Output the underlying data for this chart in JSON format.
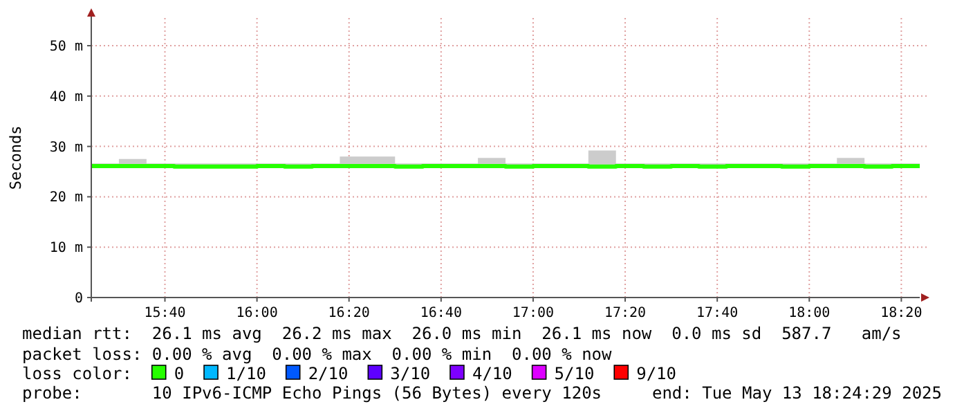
{
  "chart_data": {
    "type": "line",
    "ylabel": "Seconds",
    "legend_title": "loss color:",
    "legend": "bottom",
    "grid": true,
    "line_style": "solid",
    "marker": "none",
    "xlim": [
      15.4,
      18.4
    ],
    "xticks": [
      {
        "value": 15.6667,
        "label": "15:40"
      },
      {
        "value": 16,
        "label": "16:00"
      },
      {
        "value": 16.3333,
        "label": "16:20"
      },
      {
        "value": 16.6667,
        "label": "16:40"
      },
      {
        "value": 17,
        "label": "17:00"
      },
      {
        "value": 17.3333,
        "label": "17:20"
      },
      {
        "value": 17.6667,
        "label": "17:40"
      },
      {
        "value": 18,
        "label": "18:00"
      },
      {
        "value": 18.3333,
        "label": "18:20"
      }
    ],
    "ylim": [
      0,
      55.5
    ],
    "yticks": [
      {
        "value": 0,
        "label": "0"
      },
      {
        "value": 10,
        "label": "10 m"
      },
      {
        "value": 20,
        "label": "20 m"
      },
      {
        "value": 30,
        "label": "30 m"
      },
      {
        "value": 40,
        "label": "40 m"
      },
      {
        "value": 50,
        "label": "50 m"
      }
    ],
    "x": [
      15.4,
      15.5,
      15.6,
      15.7,
      15.8,
      15.9,
      16.0,
      16.1,
      16.2,
      16.3,
      16.4,
      16.5,
      16.6,
      16.7,
      16.8,
      16.9,
      17.0,
      17.1,
      17.2,
      17.3,
      17.4,
      17.5,
      17.6,
      17.7,
      17.8,
      17.9,
      18.0,
      18.1,
      18.2,
      18.3,
      18.4
    ],
    "series": [
      {
        "name": "0",
        "type": "step",
        "color": "#26ff00",
        "values": [
          26.1,
          26.1,
          26.1,
          26.0,
          26.0,
          26.0,
          26.1,
          26.0,
          26.1,
          26.1,
          26.1,
          26.0,
          26.1,
          26.1,
          26.1,
          26.0,
          26.1,
          26.1,
          26.0,
          26.1,
          26.0,
          26.1,
          26.0,
          26.1,
          26.1,
          26.0,
          26.1,
          26.1,
          26.0,
          26.1,
          26.1
        ],
        "lower": [
          25.9,
          25.9,
          25.9,
          25.9,
          25.9,
          25.9,
          25.9,
          25.9,
          25.9,
          25.9,
          25.9,
          25.9,
          25.9,
          25.9,
          25.9,
          25.9,
          25.9,
          25.9,
          25.9,
          25.9,
          25.9,
          25.9,
          25.9,
          25.9,
          25.9,
          25.9,
          25.9,
          25.9,
          25.9,
          25.9,
          25.9
        ],
        "upper": [
          26.6,
          27.5,
          26.6,
          26.6,
          26.6,
          26.6,
          26.6,
          26.6,
          26.6,
          28.0,
          28.0,
          26.6,
          26.6,
          26.6,
          27.7,
          26.6,
          26.6,
          26.6,
          29.2,
          26.6,
          26.6,
          26.6,
          26.6,
          26.6,
          26.6,
          26.6,
          26.6,
          27.7,
          26.6,
          26.6,
          26.6
        ]
      },
      {
        "name": "1/10",
        "type": "step",
        "color": "#00b8ff",
        "values": [
          null,
          null,
          null,
          null,
          null,
          null,
          null,
          null,
          null,
          null,
          null,
          null,
          null,
          null,
          null,
          null,
          null,
          null,
          null,
          null,
          null,
          null,
          null,
          null,
          null,
          null,
          null,
          null,
          null,
          null,
          null
        ]
      },
      {
        "name": "2/10",
        "type": "step",
        "color": "#0059ff",
        "values": [
          null,
          null,
          null,
          null,
          null,
          null,
          null,
          null,
          null,
          null,
          null,
          null,
          null,
          null,
          null,
          null,
          null,
          null,
          null,
          null,
          null,
          null,
          null,
          null,
          null,
          null,
          null,
          null,
          null,
          null,
          null
        ]
      },
      {
        "name": "3/10",
        "type": "step",
        "color": "#5e00ff",
        "values": [
          null,
          null,
          null,
          null,
          null,
          null,
          null,
          null,
          null,
          null,
          null,
          null,
          null,
          null,
          null,
          null,
          null,
          null,
          null,
          null,
          null,
          null,
          null,
          null,
          null,
          null,
          null,
          null,
          null,
          null,
          null
        ]
      },
      {
        "name": "4/10",
        "type": "step",
        "color": "#7e00ff",
        "values": [
          null,
          null,
          null,
          null,
          null,
          null,
          null,
          null,
          null,
          null,
          null,
          null,
          null,
          null,
          null,
          null,
          null,
          null,
          null,
          null,
          null,
          null,
          null,
          null,
          null,
          null,
          null,
          null,
          null,
          null,
          null
        ]
      },
      {
        "name": "5/10",
        "type": "step",
        "color": "#dd00ff",
        "values": [
          null,
          null,
          null,
          null,
          null,
          null,
          null,
          null,
          null,
          null,
          null,
          null,
          null,
          null,
          null,
          null,
          null,
          null,
          null,
          null,
          null,
          null,
          null,
          null,
          null,
          null,
          null,
          null,
          null,
          null,
          null
        ]
      },
      {
        "name": "9/10",
        "type": "step",
        "color": "#ff0000",
        "values": [
          null,
          null,
          null,
          null,
          null,
          null,
          null,
          null,
          null,
          null,
          null,
          null,
          null,
          null,
          null,
          null,
          null,
          null,
          null,
          null,
          null,
          null,
          null,
          null,
          null,
          null,
          null,
          null,
          null,
          null,
          null
        ]
      }
    ],
    "annotations": [
      "median rtt:  26.1 ms avg  26.2 ms max  26.0 ms min  26.1 ms now  0.0 ms sd  587.7   am/s",
      "packet loss: 0.00 % avg  0.00 % max  0.00 % min  0.00 % now",
      "probe:       10 IPv6-ICMP Echo Pings (56 Bytes) every 120s",
      "end: Tue May 13 18:24:29 2025"
    ]
  }
}
